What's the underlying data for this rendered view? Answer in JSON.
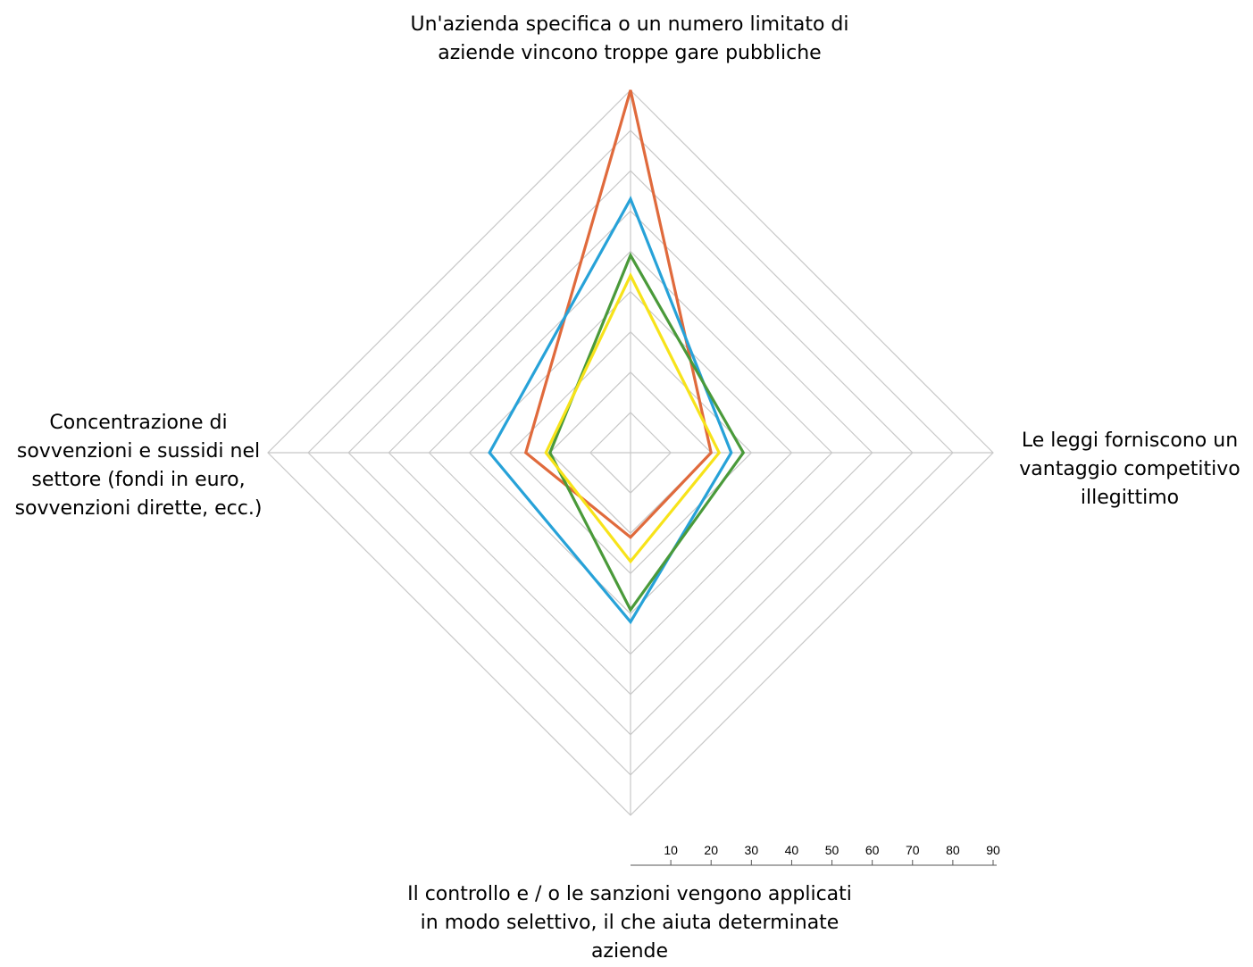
{
  "chart_data": {
    "type": "radar",
    "axes": [
      {
        "position": "top",
        "lines": [
          "Un'azienda specifica o un numero limitato di",
          "aziende vincono troppe gare pubbliche"
        ]
      },
      {
        "position": "right",
        "lines": [
          "Le leggi forniscono un",
          "vantaggio competitivo",
          "illegittimo"
        ]
      },
      {
        "position": "bottom",
        "lines": [
          "Il controllo e / o le sanzioni vengono applicati",
          "in modo selettivo, il che aiuta determinate",
          "aziende"
        ]
      },
      {
        "position": "left",
        "lines": [
          "Concentrazione di",
          "sovvenzioni e sussidi nel",
          "settore (fondi in euro,",
          "sovvenzioni dirette, ecc.)"
        ]
      }
    ],
    "scale": {
      "min": 0,
      "max": 90,
      "step": 10,
      "ticks": [
        10,
        20,
        30,
        40,
        50,
        60,
        70,
        80,
        90
      ]
    },
    "grid": true,
    "legend": "none",
    "series": [
      {
        "color": "#E06A3C",
        "values": [
          90,
          20,
          21,
          26
        ]
      },
      {
        "color": "#27A2D8",
        "values": [
          63,
          25,
          42,
          35
        ]
      },
      {
        "color": "#4A9A3A",
        "values": [
          49,
          28,
          39,
          20
        ]
      },
      {
        "color": "#F7E31A",
        "values": [
          44,
          22,
          27,
          21
        ]
      }
    ]
  }
}
